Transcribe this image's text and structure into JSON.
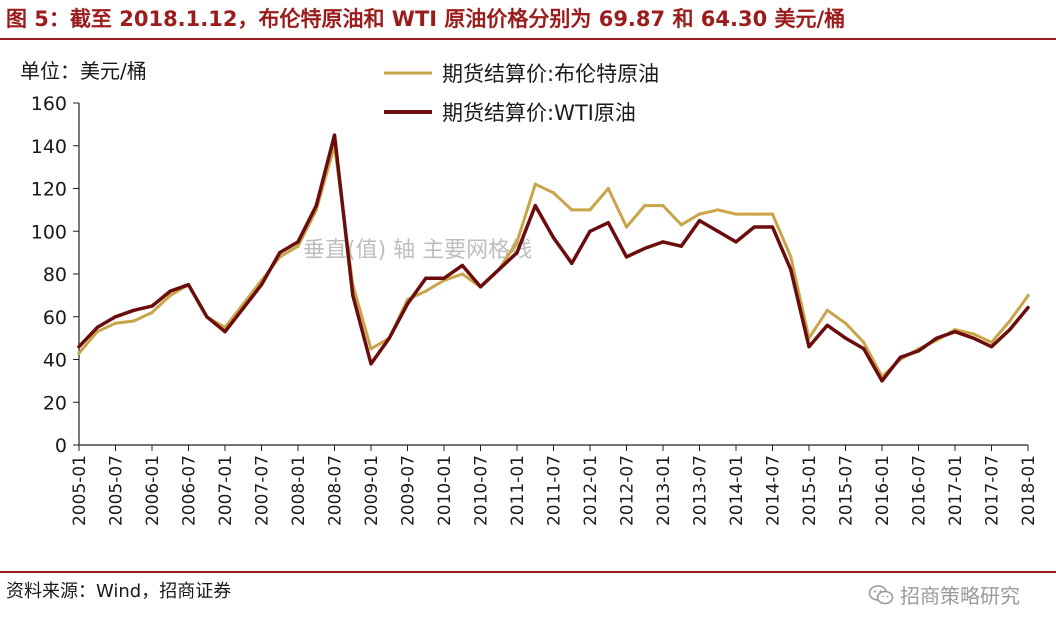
{
  "figure": {
    "title": "图 5：截至 2018.1.12，布伦特原油和 WTI 原油价格分别为 69.87 和 64.30 美元/桶",
    "source": "资料来源：Wind，招商证券",
    "brand": "招商策略研究",
    "brand_icon": "wechat-icon",
    "watermark": "垂直(值) 轴 主要网格线"
  },
  "colors": {
    "title": "#9b1c1c",
    "brent": "#c9a54a",
    "wti": "#6b0d0d",
    "rule": "#9b1c1c"
  },
  "chart_data": {
    "type": "line",
    "unit_label": "单位：美元/桶",
    "ylim": [
      0,
      160
    ],
    "y_ticks": [
      "0",
      "20",
      "40",
      "60",
      "80",
      "100",
      "120",
      "140",
      "160"
    ],
    "x_ticks": [
      "2005-01",
      "2005-07",
      "2006-01",
      "2006-07",
      "2007-01",
      "2007-07",
      "2008-01",
      "2008-07",
      "2009-01",
      "2009-07",
      "2010-01",
      "2010-07",
      "2011-01",
      "2011-07",
      "2012-01",
      "2012-07",
      "2013-01",
      "2013-07",
      "2014-01",
      "2014-07",
      "2015-01",
      "2015-07",
      "2016-01",
      "2016-07",
      "2017-01",
      "2017-07",
      "2018-01"
    ],
    "legend_position": "top-center",
    "grid": false,
    "series": [
      {
        "name": "期货结算价:布伦特原油",
        "color": "#c9a54a",
        "x": [
          "2005-01",
          "2005-04",
          "2005-07",
          "2005-10",
          "2006-01",
          "2006-04",
          "2006-07",
          "2006-10",
          "2007-01",
          "2007-04",
          "2007-07",
          "2007-10",
          "2008-01",
          "2008-04",
          "2008-07",
          "2008-10",
          "2009-01",
          "2009-04",
          "2009-07",
          "2009-10",
          "2010-01",
          "2010-04",
          "2010-07",
          "2010-10",
          "2011-01",
          "2011-04",
          "2011-07",
          "2011-10",
          "2012-01",
          "2012-04",
          "2012-07",
          "2012-10",
          "2013-01",
          "2013-04",
          "2013-07",
          "2013-10",
          "2014-01",
          "2014-04",
          "2014-07",
          "2014-10",
          "2015-01",
          "2015-04",
          "2015-07",
          "2015-10",
          "2016-01",
          "2016-04",
          "2016-07",
          "2016-10",
          "2017-01",
          "2017-04",
          "2017-07",
          "2017-10",
          "2018-01"
        ],
        "values": [
          43,
          53,
          57,
          58,
          62,
          70,
          75,
          60,
          55,
          66,
          77,
          88,
          93,
          110,
          140,
          75,
          45,
          50,
          68,
          72,
          77,
          80,
          74,
          82,
          95,
          122,
          118,
          110,
          110,
          120,
          102,
          112,
          112,
          103,
          108,
          110,
          108,
          108,
          108,
          88,
          50,
          63,
          57,
          48,
          32,
          40,
          45,
          49,
          54,
          52,
          48,
          58,
          69.87
        ]
      },
      {
        "name": "期货结算价:WTI原油",
        "color": "#6b0d0d",
        "x": [
          "2005-01",
          "2005-04",
          "2005-07",
          "2005-10",
          "2006-01",
          "2006-04",
          "2006-07",
          "2006-10",
          "2007-01",
          "2007-04",
          "2007-07",
          "2007-10",
          "2008-01",
          "2008-04",
          "2008-07",
          "2008-10",
          "2009-01",
          "2009-04",
          "2009-07",
          "2009-10",
          "2010-01",
          "2010-04",
          "2010-07",
          "2010-10",
          "2011-01",
          "2011-04",
          "2011-07",
          "2011-10",
          "2012-01",
          "2012-04",
          "2012-07",
          "2012-10",
          "2013-01",
          "2013-04",
          "2013-07",
          "2013-10",
          "2014-01",
          "2014-04",
          "2014-07",
          "2014-10",
          "2015-01",
          "2015-04",
          "2015-07",
          "2015-10",
          "2016-01",
          "2016-04",
          "2016-07",
          "2016-10",
          "2017-01",
          "2017-04",
          "2017-07",
          "2017-10",
          "2018-01"
        ],
        "values": [
          46,
          55,
          60,
          63,
          65,
          72,
          75,
          60,
          53,
          64,
          75,
          90,
          95,
          112,
          145,
          70,
          38,
          50,
          66,
          78,
          78,
          84,
          74,
          82,
          90,
          112,
          97,
          85,
          100,
          104,
          88,
          92,
          95,
          93,
          105,
          100,
          95,
          102,
          102,
          82,
          46,
          56,
          50,
          45,
          30,
          41,
          44,
          50,
          53,
          50,
          46,
          54,
          64.3
        ]
      }
    ]
  }
}
